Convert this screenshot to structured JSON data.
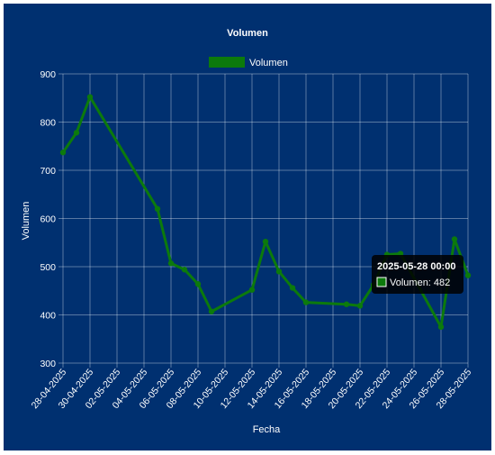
{
  "chart_data": {
    "type": "line",
    "title": "Volumen",
    "xlabel": "Fecha",
    "ylabel": "Volumen",
    "ylim": [
      300,
      900
    ],
    "yticks": [
      300,
      400,
      500,
      600,
      700,
      800,
      900
    ],
    "xlim": [
      "2025-04-28",
      "2025-05-28"
    ],
    "xticks": [
      "28-04-2025",
      "30-04-2025",
      "02-05-2025",
      "04-05-2025",
      "06-05-2025",
      "08-05-2025",
      "10-05-2025",
      "12-05-2025",
      "14-05-2025",
      "16-05-2025",
      "18-05-2025",
      "20-05-2025",
      "22-05-2025",
      "24-05-2025",
      "26-05-2025",
      "28-05-2025"
    ],
    "grid": true,
    "legend_position": "top",
    "series": [
      {
        "name": "Volumen",
        "color": "#0c7a0c",
        "points": [
          {
            "x": "2025-04-28",
            "y": 737
          },
          {
            "x": "2025-04-29",
            "y": 778
          },
          {
            "x": "2025-04-30",
            "y": 852
          },
          {
            "x": "2025-05-05",
            "y": 620
          },
          {
            "x": "2025-05-06",
            "y": 507
          },
          {
            "x": "2025-05-07",
            "y": 494
          },
          {
            "x": "2025-05-08",
            "y": 464
          },
          {
            "x": "2025-05-09",
            "y": 407
          },
          {
            "x": "2025-05-12",
            "y": 452
          },
          {
            "x": "2025-05-13",
            "y": 552
          },
          {
            "x": "2025-05-14",
            "y": 490
          },
          {
            "x": "2025-05-15",
            "y": 456
          },
          {
            "x": "2025-05-16",
            "y": 426
          },
          {
            "x": "2025-05-19",
            "y": 422
          },
          {
            "x": "2025-05-20",
            "y": 419
          },
          {
            "x": "2025-05-21",
            "y": 462
          },
          {
            "x": "2025-05-22",
            "y": 525
          },
          {
            "x": "2025-05-23",
            "y": 527
          },
          {
            "x": "2025-05-26",
            "y": 375
          },
          {
            "x": "2025-05-27",
            "y": 557
          },
          {
            "x": "2025-05-28",
            "y": 482
          }
        ]
      }
    ],
    "tooltip": {
      "title": "2025-05-28 00:00",
      "label": "Volumen: 482"
    }
  }
}
